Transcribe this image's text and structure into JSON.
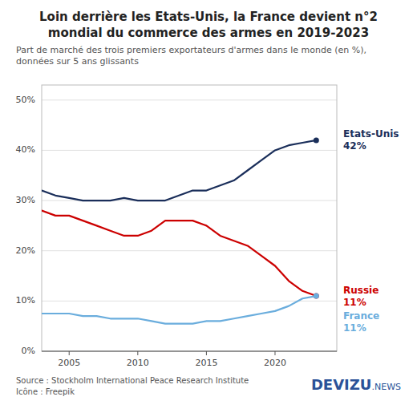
{
  "chart_data": {
    "type": "line",
    "title": "Loin derrière les Etats-Unis, la France devient n°2 mondial du commerce des armes en 2019-2023",
    "subtitle": "Part de marché des trois premiers exportateurs d'armes dans le monde (en %), données sur 5 ans glissants",
    "source": [
      "Source : Stockholm International Peace Research Institute",
      "Icône : Freepik"
    ],
    "annotations": [
      "DEVIZU",
      ".NEWS"
    ],
    "x": [
      2003,
      2004,
      2005,
      2006,
      2007,
      2008,
      2009,
      2010,
      2011,
      2012,
      2013,
      2014,
      2015,
      2016,
      2017,
      2018,
      2019,
      2020,
      2021,
      2022,
      2023
    ],
    "series": [
      {
        "name": "Etats-Unis",
        "color": "#1a2e5a",
        "values": [
          32,
          31,
          30.5,
          30,
          30,
          30,
          30.5,
          30,
          30,
          30,
          31,
          32,
          32,
          33,
          34,
          36,
          38,
          40,
          41,
          41.5,
          42
        ],
        "value_labels": [
          null,
          null,
          null,
          null,
          null,
          null,
          null,
          null,
          null,
          null,
          null,
          null,
          null,
          null,
          null,
          null,
          null,
          null,
          null,
          null,
          "42%"
        ]
      },
      {
        "name": "Russie",
        "color": "#cc0000",
        "values": [
          28,
          27,
          27,
          26,
          25,
          24,
          23,
          23,
          24,
          26,
          26,
          26,
          25,
          23,
          22,
          21,
          19,
          17,
          14,
          12,
          11
        ],
        "value_labels": [
          null,
          null,
          null,
          null,
          null,
          null,
          null,
          null,
          null,
          null,
          null,
          null,
          null,
          null,
          null,
          null,
          null,
          null,
          null,
          null,
          "11%"
        ]
      },
      {
        "name": "France",
        "color": "#6aaddd",
        "values": [
          7.5,
          7.5,
          7.5,
          7,
          7,
          6.5,
          6.5,
          6.5,
          6,
          5.5,
          5.5,
          5.5,
          6,
          6,
          6.5,
          7,
          7.5,
          8,
          9,
          10.5,
          11
        ],
        "value_labels": [
          null,
          null,
          null,
          null,
          null,
          null,
          null,
          null,
          null,
          null,
          null,
          null,
          null,
          null,
          null,
          null,
          null,
          null,
          null,
          null,
          "11%"
        ]
      }
    ],
    "xlim": [
      2003,
      2024.5
    ],
    "ylim": [
      0,
      53
    ],
    "xticks": [
      2005,
      2010,
      2015,
      2020
    ],
    "yticks": [
      {
        "value": 0,
        "label": "0%"
      },
      {
        "value": 10,
        "label": "10%"
      },
      {
        "value": 20,
        "label": "20%"
      },
      {
        "value": 30,
        "label": "30%"
      },
      {
        "value": 40,
        "label": "40%"
      },
      {
        "value": 50,
        "label": "50%"
      }
    ],
    "grid": true
  }
}
